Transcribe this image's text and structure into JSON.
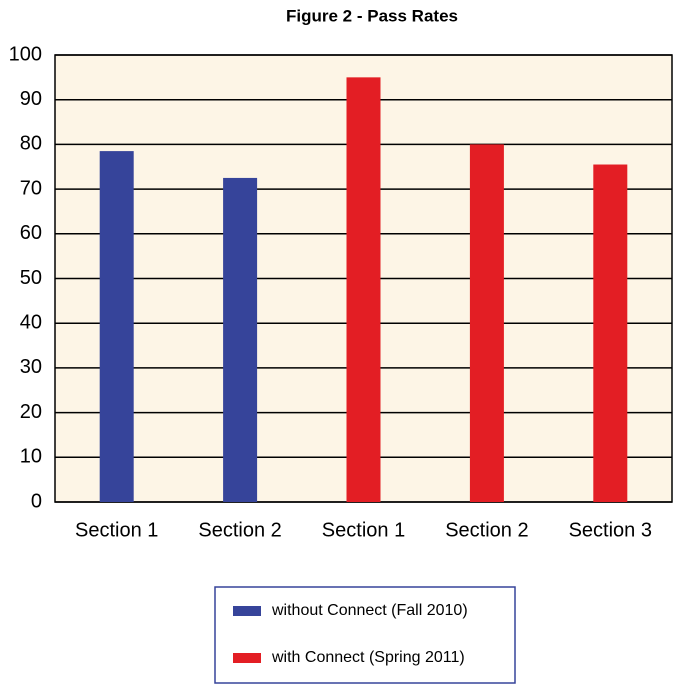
{
  "chart_data": {
    "type": "bar",
    "title": "Figure 2 - Pass Rates",
    "categories": [
      "Section 1",
      "Section 2",
      "Section 1",
      "Section 2",
      "Section 3"
    ],
    "series": [
      {
        "name": "without Connect (Fall 2010)",
        "color": "#36449a",
        "values": [
          78.5,
          72.5,
          null,
          null,
          null
        ]
      },
      {
        "name": "with Connect (Spring 2011)",
        "color": "#e31e24",
        "values": [
          null,
          null,
          95,
          80,
          75.5
        ]
      }
    ],
    "ylim": [
      0,
      100
    ],
    "yticks": [
      0,
      10,
      20,
      30,
      40,
      50,
      60,
      70,
      80,
      90,
      100
    ],
    "grid": true,
    "legend": "bottom"
  }
}
